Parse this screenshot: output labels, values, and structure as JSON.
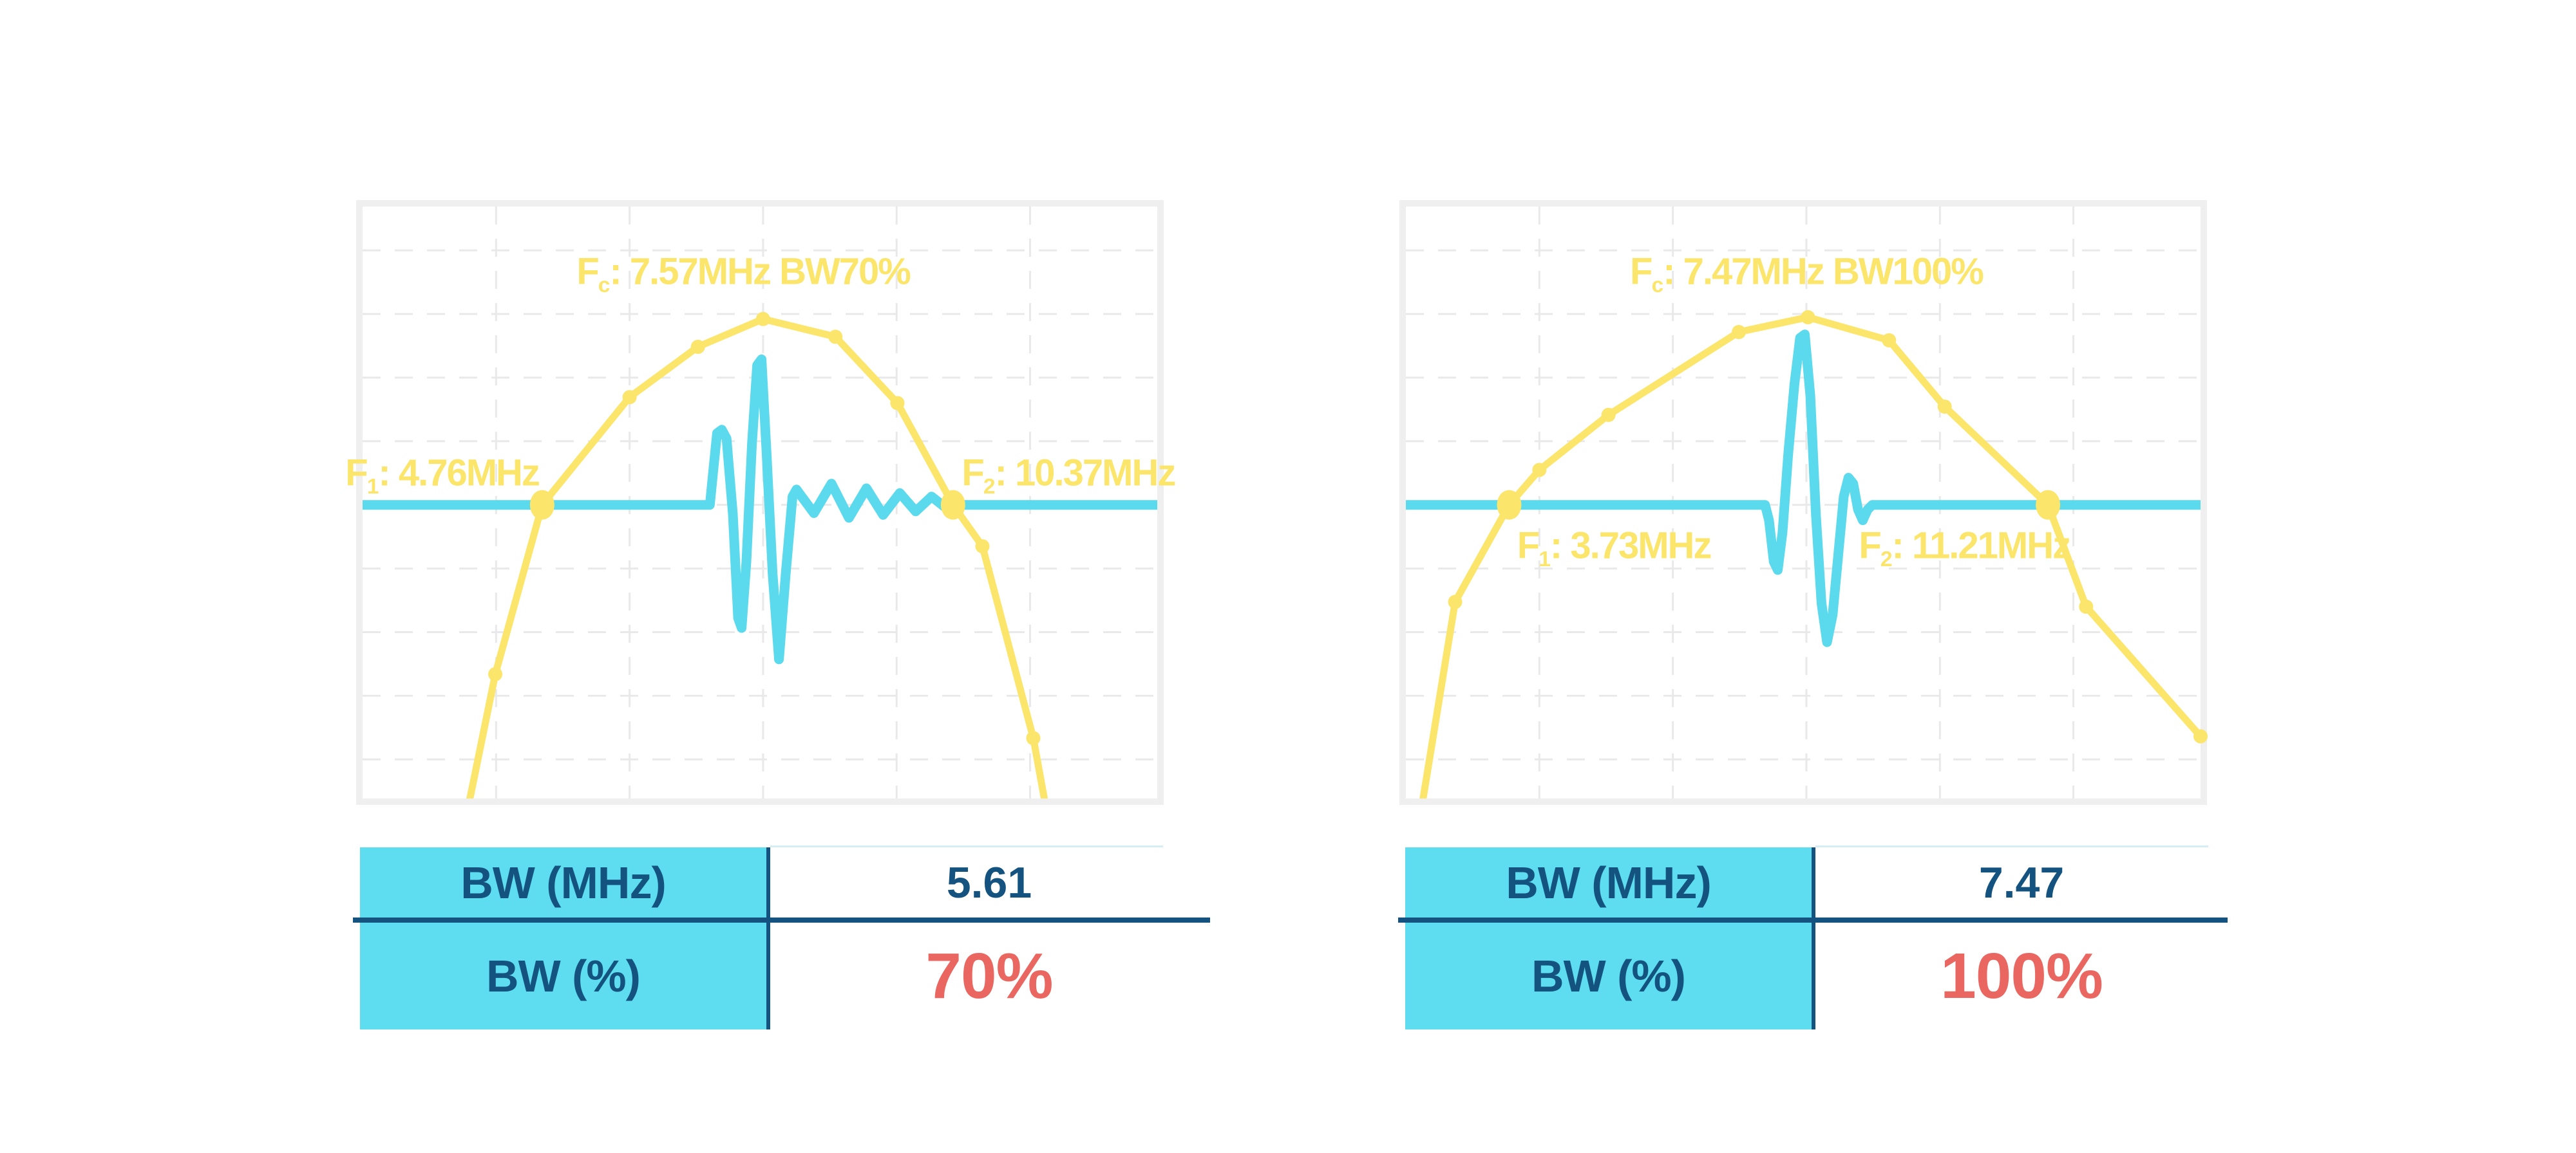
{
  "colors": {
    "spectrum_yellow": "#FBE56A",
    "pulse_cyan": "#5BDAED",
    "table_header_bg": "#5DDDEF",
    "navy": "#14537F",
    "percent_red": "#EA6660",
    "chart_frame": "#EFEFEF",
    "gridline": "#E9E9E9",
    "table_light_divider": "#D5EEF5"
  },
  "chart_data": [
    {
      "type": "line",
      "name": "bw70-spectrum-and-pulse",
      "grid": true,
      "axes": {
        "x_tick_labels": [],
        "y_tick_labels": []
      },
      "annotations": {
        "fc": {
          "prefix": "F",
          "sub": "c",
          "rest": ": 7.57MHz BW70%",
          "full": "Fc: 7.57MHz BW70%"
        },
        "f1": {
          "prefix": "F",
          "sub": "1",
          "rest": ": 4.76MHz",
          "full": "F1: 4.76MHz"
        },
        "f2": {
          "prefix": "F",
          "sub": "2",
          "rest": ": 10.37MHz",
          "full": "F2: 10.37MHz"
        }
      },
      "values": {
        "fc_mhz": 7.57,
        "f1_mhz": 4.76,
        "f2_mhz": 10.37,
        "bw_mhz": 5.61,
        "bw_pct": 70
      },
      "spectrum_points_frac": [
        [
          0.126,
          1.06,
          0
        ],
        [
          0.167,
          0.79,
          1
        ],
        [
          0.226,
          0.504,
          2
        ],
        [
          0.336,
          0.322,
          1
        ],
        [
          0.422,
          0.237,
          1
        ],
        [
          0.504,
          0.19,
          1
        ],
        [
          0.595,
          0.22,
          1
        ],
        [
          0.673,
          0.332,
          1
        ],
        [
          0.743,
          0.504,
          2
        ],
        [
          0.78,
          0.574,
          1
        ],
        [
          0.844,
          0.898,
          1
        ],
        [
          0.866,
          1.06,
          0
        ]
      ],
      "pulse_points_frac": [
        [
          0,
          0.504
        ],
        [
          0.437,
          0.504
        ],
        [
          0.441,
          0.45
        ],
        [
          0.446,
          0.383
        ],
        [
          0.452,
          0.377
        ],
        [
          0.458,
          0.392
        ],
        [
          0.466,
          0.52
        ],
        [
          0.4725,
          0.695
        ],
        [
          0.477,
          0.712
        ],
        [
          0.483,
          0.6
        ],
        [
          0.49,
          0.4
        ],
        [
          0.4965,
          0.268
        ],
        [
          0.502,
          0.258
        ],
        [
          0.5085,
          0.42
        ],
        [
          0.516,
          0.62
        ],
        [
          0.524,
          0.765
        ],
        [
          0.5325,
          0.62
        ],
        [
          0.541,
          0.49
        ],
        [
          0.546,
          0.478
        ],
        [
          0.568,
          0.518
        ],
        [
          0.59,
          0.468
        ],
        [
          0.612,
          0.526
        ],
        [
          0.634,
          0.476
        ],
        [
          0.655,
          0.521
        ],
        [
          0.676,
          0.484
        ],
        [
          0.696,
          0.515
        ],
        [
          0.716,
          0.49
        ],
        [
          0.734,
          0.509
        ],
        [
          0.748,
          0.504
        ],
        [
          1,
          0.504
        ]
      ],
      "table": {
        "rows": [
          {
            "label": "BW (MHz)",
            "value": "5.61"
          },
          {
            "label": "BW (%)",
            "value": "70%"
          }
        ]
      }
    },
    {
      "type": "line",
      "name": "bw100-spectrum-and-pulse",
      "grid": true,
      "axes": {
        "x_tick_labels": [],
        "y_tick_labels": []
      },
      "annotations": {
        "fc": {
          "prefix": "F",
          "sub": "c",
          "rest": ": 7.47MHz BW100%",
          "full": "Fc: 7.47MHz BW100%"
        },
        "f1": {
          "prefix": "F",
          "sub": "1",
          "rest": ": 3.73MHz",
          "full": "F1: 3.73MHz"
        },
        "f2": {
          "prefix": "F",
          "sub": "2",
          "rest": ": 11.21MHz",
          "full": "F2: 11.21MHz"
        }
      },
      "values": {
        "fc_mhz": 7.47,
        "f1_mhz": 3.73,
        "f2_mhz": 11.21,
        "bw_mhz": 7.47,
        "bw_pct": 100
      },
      "spectrum_points_frac": [
        [
          0.012,
          1.08,
          0
        ],
        [
          0.062,
          0.668,
          1
        ],
        [
          0.13,
          0.504,
          2
        ],
        [
          0.168,
          0.445,
          1
        ],
        [
          0.255,
          0.352,
          1
        ],
        [
          0.419,
          0.212,
          1
        ],
        [
          0.506,
          0.187,
          1
        ],
        [
          0.608,
          0.226,
          1
        ],
        [
          0.678,
          0.338,
          1
        ],
        [
          0.808,
          0.504,
          2
        ],
        [
          0.856,
          0.676,
          1
        ],
        [
          1.0,
          0.895,
          1
        ]
      ],
      "pulse_points_frac": [
        [
          0,
          0.504
        ],
        [
          0.452,
          0.504
        ],
        [
          0.457,
          0.53
        ],
        [
          0.463,
          0.6
        ],
        [
          0.468,
          0.614
        ],
        [
          0.474,
          0.55
        ],
        [
          0.481,
          0.42
        ],
        [
          0.489,
          0.3
        ],
        [
          0.496,
          0.222
        ],
        [
          0.502,
          0.216
        ],
        [
          0.509,
          0.32
        ],
        [
          0.516,
          0.52
        ],
        [
          0.523,
          0.67
        ],
        [
          0.53,
          0.736
        ],
        [
          0.537,
          0.69
        ],
        [
          0.544,
          0.59
        ],
        [
          0.551,
          0.49
        ],
        [
          0.557,
          0.458
        ],
        [
          0.563,
          0.468
        ],
        [
          0.569,
          0.512
        ],
        [
          0.575,
          0.53
        ],
        [
          0.581,
          0.512
        ],
        [
          0.587,
          0.504
        ],
        [
          1,
          0.504
        ]
      ],
      "table": {
        "rows": [
          {
            "label": "BW (MHz)",
            "value": "7.47"
          },
          {
            "label": "BW (%)",
            "value": "100%"
          }
        ]
      }
    }
  ]
}
